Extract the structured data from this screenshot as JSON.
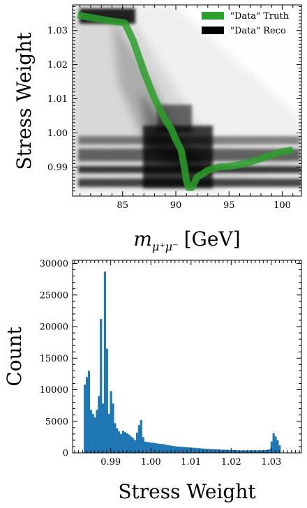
{
  "chart_data": [
    {
      "type": "scatter",
      "title": "",
      "xlabel": "m_{μ+μ−} [GeV]",
      "xlabel_main": "m",
      "xlabel_sub": "μ⁺μ⁻",
      "xlabel_unit": "[GeV]",
      "ylabel": "Stress Weight",
      "xlim": [
        80.3,
        101.8
      ],
      "ylim": [
        0.9815,
        1.0375
      ],
      "xticks": [
        85,
        90,
        95,
        100
      ],
      "xtick_labels": [
        "85",
        "90",
        "95",
        "100"
      ],
      "yticks": [
        0.99,
        1.0,
        1.01,
        1.02,
        1.03
      ],
      "ytick_labels": [
        "0.99",
        "1.00",
        "1.01",
        "1.02",
        "1.03"
      ],
      "legend_position": "top-right",
      "series": [
        {
          "name": "\"Data\" Truth",
          "color": "#2ca02c",
          "x": [
            80.8,
            82.0,
            83.5,
            85.2,
            86.0,
            87.0,
            88.0,
            89.0,
            89.6,
            90.0,
            90.5,
            90.8,
            91.0,
            91.2,
            91.5,
            92.0,
            92.5,
            93.0,
            94.0,
            95.0,
            96.0,
            97.0,
            98.0,
            99.0,
            100.0,
            101.0
          ],
          "y": [
            1.0345,
            1.0338,
            1.033,
            1.0322,
            1.027,
            1.018,
            1.01,
            1.004,
            1.001,
            0.998,
            0.995,
            0.99,
            0.986,
            0.984,
            0.984,
            0.987,
            0.988,
            0.989,
            0.99,
            0.9902,
            0.9907,
            0.9915,
            0.9925,
            0.9935,
            0.9945,
            0.995
          ]
        },
        {
          "name": "\"Data\" Reco",
          "color": "#000000"
        }
      ]
    },
    {
      "type": "bar",
      "title": "",
      "xlabel": "Stress Weight",
      "ylabel": "Count",
      "xlim": [
        0.9805,
        1.0375
      ],
      "ylim": [
        0,
        30500
      ],
      "xticks": [
        0.99,
        1.0,
        1.01,
        1.02,
        1.03
      ],
      "xtick_labels": [
        "0.99",
        "1.00",
        "1.01",
        "1.02",
        "1.03"
      ],
      "yticks": [
        0,
        5000,
        10000,
        15000,
        20000,
        25000,
        30000
      ],
      "ytick_labels": [
        "0",
        "5000",
        "10000",
        "15000",
        "20000",
        "25000",
        "30000"
      ],
      "color": "#1f77b4",
      "bin_start": 0.9833,
      "bin_width": 0.0005,
      "values": [
        10800,
        12000,
        13000,
        6800,
        6200,
        5600,
        6800,
        9000,
        21200,
        7800,
        28700,
        16500,
        6200,
        9800,
        7800,
        4700,
        3900,
        3400,
        3000,
        3500,
        3300,
        3100,
        2900,
        2600,
        2300,
        2000,
        3200,
        4400,
        5200,
        2500,
        1800,
        1700,
        1700,
        1600,
        1600,
        1550,
        1500,
        1450,
        1400,
        1400,
        1300,
        1250,
        1200,
        1150,
        1100,
        1050,
        1000,
        1000,
        950,
        950,
        900,
        900,
        850,
        850,
        800,
        800,
        750,
        750,
        700,
        700,
        650,
        650,
        600,
        600,
        600,
        550,
        550,
        550,
        500,
        500,
        500,
        500,
        450,
        450,
        450,
        450,
        400,
        400,
        400,
        400,
        400,
        400,
        400,
        400,
        400,
        400,
        400,
        400,
        400,
        420,
        450,
        500,
        600,
        1800,
        3100,
        2600,
        2000,
        1200
      ]
    }
  ]
}
